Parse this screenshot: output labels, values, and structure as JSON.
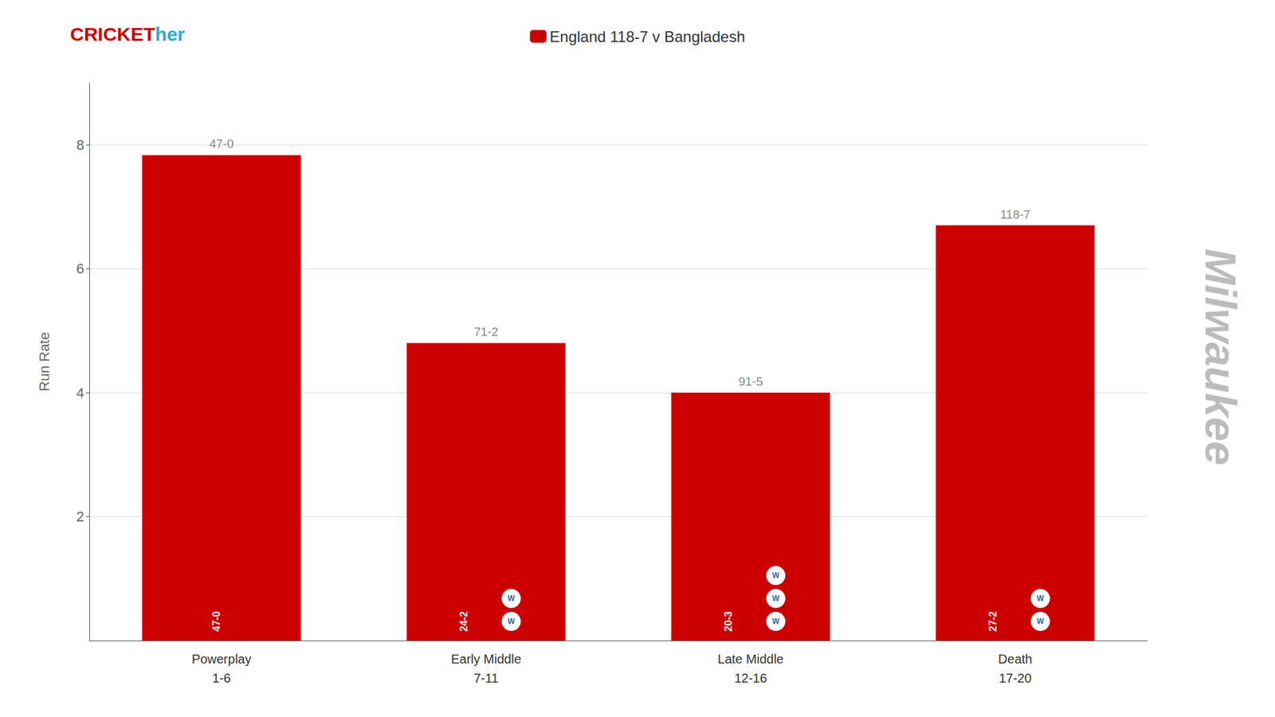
{
  "chart_data": {
    "type": "bar",
    "categories": [
      "Powerplay\n1-6",
      "Early Middle\n7-11",
      "Late Middle\n12-16",
      "Death\n17-20"
    ],
    "series": [
      {
        "name": "England 118-7 v Bangladesh",
        "color": "#CC0000",
        "values": [
          7.833,
          4.8,
          4.0,
          6.7
        ],
        "score_labels": [
          "47-0",
          "71-2",
          "91-5",
          "118-7"
        ],
        "phase_labels": [
          "47-0",
          "24-2",
          "20-3",
          "27-2"
        ],
        "wickets": [
          0,
          2,
          3,
          2
        ]
      }
    ],
    "wicket_label": "W",
    "ylabel": "Run Rate",
    "ylim": [
      0,
      9
    ],
    "yticks": [
      2,
      4,
      6,
      8
    ],
    "grid": true,
    "legend": "top",
    "branding": [
      {
        "text": "CRICKET",
        "color": "#CC0000"
      },
      {
        "text": "her",
        "color": "#29ABD4"
      }
    ],
    "watermark": "Milwaukee"
  }
}
